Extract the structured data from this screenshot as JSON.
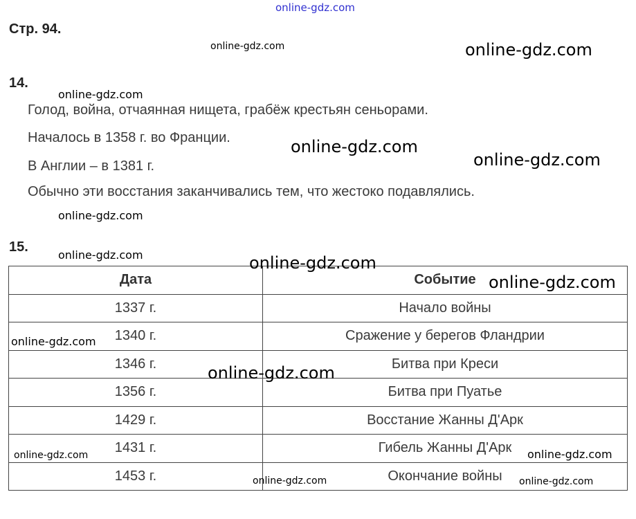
{
  "page_label": "Стр. 94.",
  "task14": {
    "number": "14.",
    "lines": [
      "Голод, война, отчаянная нищета, грабёж крестьян сеньорами.",
      "Началось в 1358 г. во Франции.",
      "В Англии – в 1381 г.",
      "Обычно эти восстания заканчивались тем, что жестоко подавлялись."
    ]
  },
  "task15": {
    "number": "15.",
    "headers": [
      "Дата",
      "Событие"
    ],
    "rows": [
      [
        "1337 г.",
        "Начало войны"
      ],
      [
        "1340 г.",
        "Сражение у берегов Фландрии"
      ],
      [
        "1346 г.",
        "Битва при Креси"
      ],
      [
        "1356 г.",
        "Битва при Пуатье"
      ],
      [
        "1429 г.",
        "Восстание Жанны Д'Арк"
      ],
      [
        "1431 г.",
        "Гибель Жанны Д'Арк"
      ],
      [
        "1453 г.",
        "Окончание войны"
      ]
    ]
  },
  "watermark": "online-gdz.com"
}
